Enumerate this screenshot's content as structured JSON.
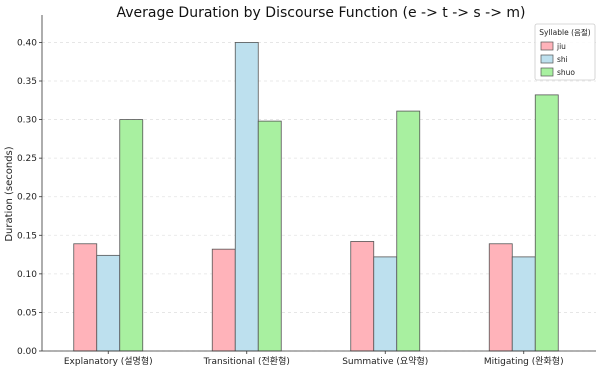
{
  "chart_data": {
    "type": "bar",
    "title": "Average Duration by Discourse Function (e -> t -> s -> m)",
    "xlabel": "",
    "ylabel": "Duration (seconds)",
    "categories": [
      "Explanatory (설명형)",
      "Transitional (전환형)",
      "Summative (요약형)",
      "Mitigating (완화형)"
    ],
    "ylim": [
      0,
      0.42
    ],
    "yticks": [
      "0.00",
      "0.05",
      "0.10",
      "0.15",
      "0.20",
      "0.25",
      "0.30",
      "0.35",
      "0.40"
    ],
    "grid": true,
    "legend": {
      "title": "Syllable (음절)",
      "placement": "top-right"
    },
    "series": [
      {
        "name": "jiu",
        "color": "#ffb3ba",
        "values": [
          0.139,
          0.132,
          0.142,
          0.139
        ]
      },
      {
        "name": "shi",
        "color": "#bde0ee",
        "values": [
          0.124,
          0.4,
          0.122,
          0.122
        ]
      },
      {
        "name": "shuo",
        "color": "#a8f0a0",
        "values": [
          0.3,
          0.298,
          0.311,
          0.332
        ]
      }
    ]
  }
}
